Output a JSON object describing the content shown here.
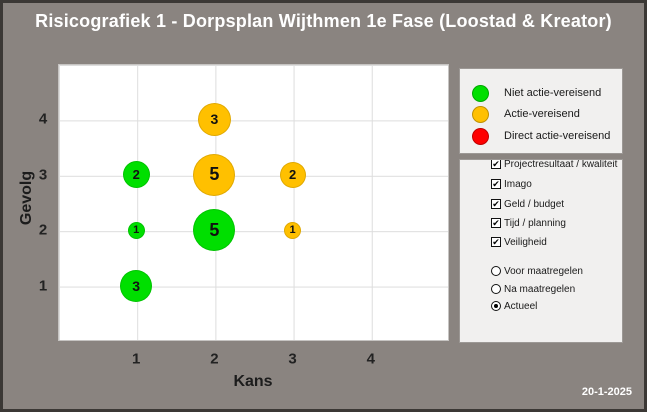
{
  "header": {
    "title": "Risicografiek 1 - Dorpsplan Wijthmen 1e Fase (Loostad & Kreator)",
    "date": "20-1-2025"
  },
  "chart_data": {
    "type": "bubble",
    "title": "Risicografiek 1 - Dorpsplan Wijthmen 1e Fase (Loostad & Kreator)",
    "xlabel": "Kans",
    "ylabel": "Gevolg",
    "xlim": [
      0,
      5
    ],
    "ylim": [
      0,
      5
    ],
    "xticks": [
      1,
      2,
      3,
      4
    ],
    "yticks": [
      1,
      2,
      3,
      4
    ],
    "grid": true,
    "legend_position": "right",
    "bubbles": [
      {
        "kans": 2,
        "gevolg": 4,
        "count": 3,
        "status": "Actie-vereisend",
        "color": "#ffc000",
        "size": 33
      },
      {
        "kans": 1,
        "gevolg": 3,
        "count": 2,
        "status": "Niet actie-vereisend",
        "color": "#00df00",
        "size": 27
      },
      {
        "kans": 2,
        "gevolg": 3,
        "count": 5,
        "status": "Actie-vereisend",
        "color": "#ffc000",
        "size": 42
      },
      {
        "kans": 3,
        "gevolg": 3,
        "count": 2,
        "status": "Actie-vereisend",
        "color": "#ffc000",
        "size": 26
      },
      {
        "kans": 1,
        "gevolg": 2,
        "count": 1,
        "status": "Niet actie-vereisend",
        "color": "#00df00",
        "size": 17
      },
      {
        "kans": 2,
        "gevolg": 2,
        "count": 5,
        "status": "Niet actie-vereisend",
        "color": "#00df00",
        "size": 42
      },
      {
        "kans": 3,
        "gevolg": 2,
        "count": 1,
        "status": "Actie-vereisend",
        "color": "#ffc000",
        "size": 17
      },
      {
        "kans": 1,
        "gevolg": 1,
        "count": 3,
        "status": "Niet actie-vereisend",
        "color": "#00df00",
        "size": 32
      }
    ]
  },
  "legend": {
    "items": [
      {
        "label": "Niet actie-vereisend",
        "color": "#00df00"
      },
      {
        "label": "Actie-vereisend",
        "color": "#ffc000"
      },
      {
        "label": "Direct actie-vereisend",
        "color": "#fe0000"
      }
    ]
  },
  "filters": {
    "checkboxes": [
      {
        "label": "Projectresultaat / kwaliteit",
        "checked": true
      },
      {
        "label": "Imago",
        "checked": true
      },
      {
        "label": "Geld / budget",
        "checked": true
      },
      {
        "label": "Tijd / planning",
        "checked": true
      },
      {
        "label": "Veiligheid",
        "checked": true
      }
    ],
    "radios": [
      {
        "label": "Voor maatregelen",
        "selected": false
      },
      {
        "label": "Na maatregelen",
        "selected": false
      },
      {
        "label": "Actueel",
        "selected": true
      }
    ]
  }
}
